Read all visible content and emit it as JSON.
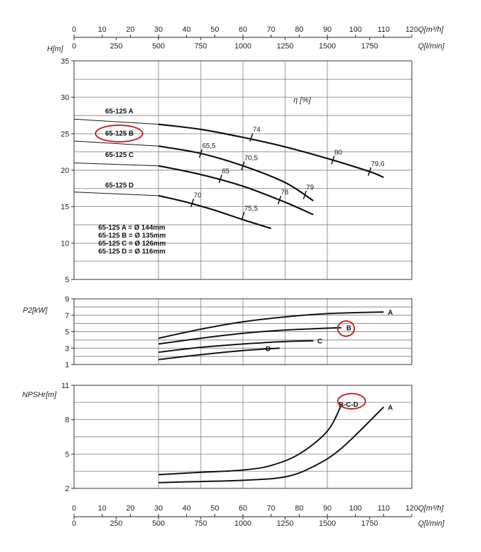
{
  "colors": {
    "curve": "#111111",
    "grid": "#666666",
    "highlight": "#c0282d"
  },
  "top_axis": {
    "q_m3h_label": "Q[m³/h]",
    "q_lmin_label": "Q[l/min]",
    "q_m3h_ticks": [
      "0",
      "10",
      "20",
      "30",
      "40",
      "50",
      "60",
      "70",
      "80",
      "90",
      "100",
      "110",
      "120"
    ],
    "q_lmin_ticks": [
      "0",
      "250",
      "500",
      "750",
      "1000",
      "1250",
      "1500",
      "1750"
    ]
  },
  "bottom_axis": {
    "q_m3h_label": "Q[m³/h]",
    "q_lmin_label": "Q[l/min]",
    "q_m3h_ticks": [
      "0",
      "10",
      "20",
      "30",
      "40",
      "50",
      "60",
      "70",
      "80",
      "90",
      "100",
      "110",
      "120"
    ],
    "q_lmin_ticks": [
      "0",
      "250",
      "500",
      "750",
      "1000",
      "1250",
      "1500",
      "1750"
    ]
  },
  "chart_data": [
    {
      "type": "line",
      "ylabel": "H[m]",
      "xlabel": "Q[m³/h]",
      "xlim": [
        0,
        120
      ],
      "ylim": [
        5,
        35
      ],
      "yticks": [
        "5",
        "10",
        "15",
        "20",
        "25",
        "30",
        "35"
      ],
      "eff_title": "η [%]",
      "series": [
        {
          "name": "65-125 A",
          "x": [
            0,
            30,
            45,
            60,
            75,
            90,
            105,
            110
          ],
          "y": [
            27,
            26.3,
            25.6,
            24.5,
            23.2,
            21.6,
            19.8,
            19
          ]
        },
        {
          "name": "65-125 B",
          "x": [
            0,
            30,
            45,
            60,
            75,
            85
          ],
          "y": [
            24,
            23.3,
            22.3,
            20.6,
            18.3,
            15.8
          ]
        },
        {
          "name": "65-125 C",
          "x": [
            0,
            30,
            45,
            60,
            75,
            85
          ],
          "y": [
            21,
            20.6,
            19.4,
            17.8,
            15.6,
            13.9
          ]
        },
        {
          "name": "65-125 D",
          "x": [
            0,
            30,
            40,
            50,
            60,
            70
          ],
          "y": [
            17,
            16.5,
            15.6,
            14.5,
            13.2,
            12
          ]
        }
      ],
      "highlighted_series": "65-125 B",
      "efficiency_marks": [
        {
          "label": "74",
          "x": 63,
          "y": 24.5
        },
        {
          "label": "80",
          "x": 92,
          "y": 21.4
        },
        {
          "label": "79,6",
          "x": 105,
          "y": 19.8
        },
        {
          "label": "65,5",
          "x": 45,
          "y": 22.3
        },
        {
          "label": "70,5",
          "x": 60,
          "y": 20.6
        },
        {
          "label": "79",
          "x": 82,
          "y": 16.6
        },
        {
          "label": "65",
          "x": 52,
          "y": 18.8
        },
        {
          "label": "78",
          "x": 73,
          "y": 15.9
        },
        {
          "label": "70",
          "x": 42,
          "y": 15.5
        },
        {
          "label": "75,5",
          "x": 60,
          "y": 13.7
        }
      ],
      "impeller_legend": [
        "65-125 A = Ø 144mm",
        "65-125 B = Ø 135mm",
        "65-125 C = Ø 126mm",
        "65-125 D = Ø 116mm"
      ]
    },
    {
      "type": "line",
      "ylabel": "P2[kW]",
      "xlabel": "Q[m³/h]",
      "xlim": [
        0,
        120
      ],
      "ylim": [
        1,
        9
      ],
      "yticks": [
        "1",
        "3",
        "5",
        "7",
        "9"
      ],
      "series": [
        {
          "name": "A",
          "x": [
            30,
            45,
            60,
            75,
            90,
            110
          ],
          "y": [
            4.2,
            5.3,
            6.2,
            6.8,
            7.2,
            7.4
          ]
        },
        {
          "name": "B",
          "x": [
            30,
            45,
            60,
            75,
            95
          ],
          "y": [
            3.5,
            4.2,
            4.8,
            5.2,
            5.5
          ]
        },
        {
          "name": "C",
          "x": [
            30,
            45,
            60,
            75,
            85
          ],
          "y": [
            2.5,
            3.1,
            3.5,
            3.8,
            3.9
          ]
        },
        {
          "name": "D",
          "x": [
            30,
            45,
            60,
            73
          ],
          "y": [
            1.6,
            2.2,
            2.7,
            3.0
          ]
        }
      ],
      "highlighted_series": "B"
    },
    {
      "type": "line",
      "ylabel": "NPSHr[m]",
      "xlabel": "Q[m³/h]",
      "xlim": [
        0,
        120
      ],
      "ylim": [
        2,
        11
      ],
      "yticks": [
        "2",
        "5",
        "8",
        "11"
      ],
      "series": [
        {
          "name": "B-C-D",
          "x": [
            30,
            45,
            60,
            70,
            80,
            90,
            95
          ],
          "y": [
            3.2,
            3.4,
            3.6,
            4.0,
            5.0,
            7.0,
            9.3
          ]
        },
        {
          "name": "A",
          "x": [
            30,
            45,
            60,
            75,
            85,
            95,
            110
          ],
          "y": [
            2.5,
            2.6,
            2.7,
            3.0,
            3.9,
            5.5,
            9.1
          ]
        }
      ],
      "highlighted_series": "B-C-D"
    }
  ]
}
